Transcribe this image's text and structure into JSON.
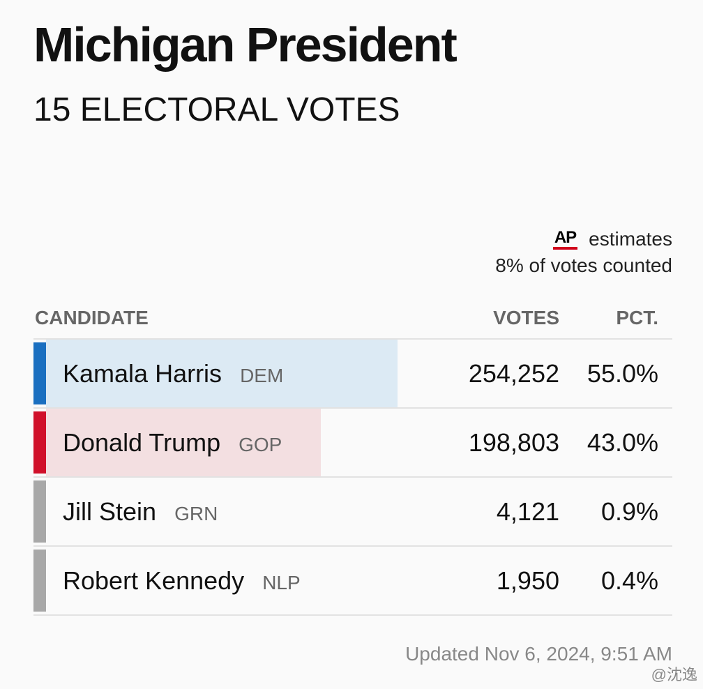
{
  "header": {
    "title": "Michigan President",
    "subtitle": "15 ELECTORAL VOTES"
  },
  "estimate": {
    "source_logo": "AP",
    "label": "estimates",
    "counted": "8% of votes counted"
  },
  "table": {
    "columns": {
      "candidate": "CANDIDATE",
      "votes": "VOTES",
      "pct": "PCT."
    },
    "rows": [
      {
        "name": "Kamala Harris",
        "party": "DEM",
        "votes": "254,252",
        "pct": "55.0%",
        "bar_color": "#1a6fc0",
        "fill_color": "#dceaf4",
        "fill_fraction": 0.55
      },
      {
        "name": "Donald Trump",
        "party": "GOP",
        "votes": "198,803",
        "pct": "43.0%",
        "bar_color": "#d0102a",
        "fill_color": "#f3dfe1",
        "fill_fraction": 0.43
      },
      {
        "name": "Jill Stein",
        "party": "GRN",
        "votes": "4,121",
        "pct": "0.9%",
        "bar_color": "#a8a8a8",
        "fill_color": "#eeeeee",
        "fill_fraction": 0.009
      },
      {
        "name": "Robert Kennedy",
        "party": "NLP",
        "votes": "1,950",
        "pct": "0.4%",
        "bar_color": "#a8a8a8",
        "fill_color": "#eeeeee",
        "fill_fraction": 0.004
      }
    ]
  },
  "footer": {
    "updated": "Updated Nov 6, 2024, 9:51 AM",
    "watermark": "@沈逸"
  },
  "colors": {
    "ap_underline": "#d0021b",
    "divider": "#e2e2e2"
  }
}
